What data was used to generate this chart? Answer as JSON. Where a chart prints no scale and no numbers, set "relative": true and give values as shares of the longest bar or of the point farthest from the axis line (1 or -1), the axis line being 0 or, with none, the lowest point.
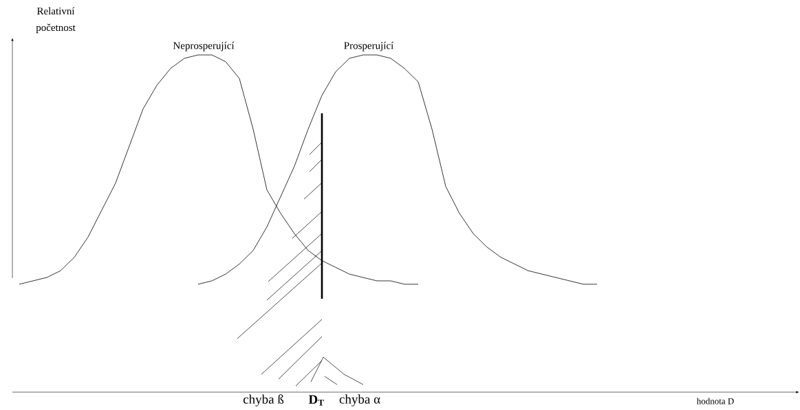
{
  "chart_data": {
    "type": "line",
    "relative": true,
    "ylabel": "Relativní početnost",
    "xlabel": "hodnota D",
    "legend": false,
    "line_style": "solid",
    "categories": [
      null,
      null,
      null,
      null,
      null,
      null,
      null,
      null,
      null,
      null,
      null,
      null,
      null,
      null,
      null,
      null,
      null,
      null,
      null,
      null,
      null,
      null,
      null,
      null,
      null,
      null,
      null,
      null,
      null,
      null,
      null,
      null,
      null,
      null,
      null,
      null,
      null,
      null,
      null,
      null,
      null,
      null,
      null,
      null,
      null,
      null,
      null,
      null,
      null,
      null,
      null,
      null,
      null,
      null,
      null,
      null,
      null
    ],
    "series": [
      {
        "name": "Neprosperující",
        "color": "#000000",
        "values": [
          0.32,
          0.33,
          0.34,
          0.36,
          0.4,
          0.46,
          0.54,
          0.62,
          0.73,
          0.84,
          0.91,
          0.96,
          0.99,
          1.0,
          1.0,
          0.98,
          0.93,
          0.78,
          0.6,
          0.53,
          0.47,
          0.42,
          0.39,
          0.37,
          0.35,
          0.34,
          0.33,
          0.33,
          0.32,
          0.32,
          null,
          null,
          null,
          null,
          null,
          null,
          null,
          null,
          null,
          null,
          null,
          null,
          null,
          null,
          null,
          null,
          null,
          null,
          null,
          null,
          null,
          null,
          null,
          null,
          null,
          null,
          null
        ]
      },
      {
        "name": "Prosperující",
        "color": "#000000",
        "values": [
          null,
          null,
          null,
          null,
          null,
          null,
          null,
          null,
          null,
          null,
          null,
          null,
          null,
          0.32,
          0.33,
          0.35,
          0.38,
          0.42,
          0.49,
          0.58,
          0.67,
          0.78,
          0.88,
          0.95,
          0.99,
          1.0,
          1.0,
          0.99,
          0.96,
          0.92,
          0.78,
          0.61,
          0.53,
          0.47,
          0.43,
          0.4,
          0.38,
          0.36,
          0.35,
          0.34,
          0.33,
          0.32,
          0.32,
          null,
          null,
          null,
          null,
          null,
          null,
          null,
          null,
          null,
          null,
          null,
          null,
          null,
          null
        ]
      }
    ],
    "annotations": [
      "chyba ß",
      "D$_{T}$",
      "chyba α"
    ]
  }
}
